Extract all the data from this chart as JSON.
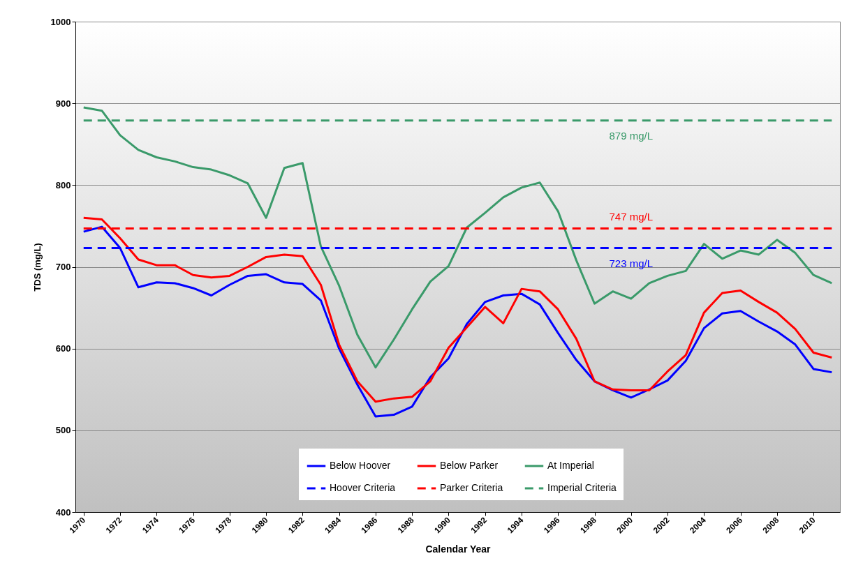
{
  "chart_data": {
    "type": "line",
    "xlabel": "Calendar Year",
    "ylabel": "TDS (mg/L)",
    "categories": [
      "1970",
      null,
      "1972",
      null,
      "1974",
      null,
      "1976",
      null,
      "1978",
      null,
      "1980",
      null,
      "1982",
      null,
      "1984",
      null,
      "1986",
      null,
      "1988",
      null,
      "1990",
      null,
      "1992",
      null,
      "1994",
      null,
      "1996",
      null,
      "1998",
      null,
      "2000",
      null,
      "2002",
      null,
      "2004",
      null,
      "2006",
      null,
      "2008",
      null,
      "2010",
      null
    ],
    "ylim": [
      400,
      1000
    ],
    "yticks": [
      400,
      500,
      600,
      700,
      800,
      900,
      1000
    ],
    "grid": "y",
    "legend": "bottom",
    "marker": "none",
    "series": [
      {
        "name": "Below Hoover",
        "color": "#0000ff",
        "line_style": "solid",
        "values": [
          743,
          749,
          723,
          675,
          681,
          680,
          674,
          665,
          678,
          689,
          691,
          681,
          679,
          659,
          600,
          556,
          517,
          519,
          529,
          565,
          588,
          630,
          657,
          665,
          667,
          654,
          619,
          586,
          560,
          549,
          540,
          550,
          561,
          585,
          625,
          643,
          646,
          633,
          621,
          605,
          575,
          571
        ]
      },
      {
        "name": "Below Parker",
        "color": "#ff0000",
        "line_style": "solid",
        "values": [
          760,
          758,
          735,
          709,
          702,
          702,
          690,
          687,
          689,
          700,
          712,
          715,
          713,
          678,
          605,
          560,
          535,
          539,
          541,
          560,
          601,
          626,
          651,
          631,
          673,
          670,
          648,
          612,
          560,
          550,
          549,
          549,
          572,
          592,
          644,
          668,
          671,
          657,
          644,
          624,
          595,
          589
        ]
      },
      {
        "name": "At Imperial",
        "color": "#3a9a6a",
        "line_style": "solid",
        "values": [
          895,
          891,
          861,
          843,
          834,
          829,
          822,
          819,
          812,
          802,
          760,
          821,
          827,
          725,
          677,
          617,
          577,
          611,
          648,
          682,
          701,
          748,
          766,
          785,
          797,
          803,
          768,
          708,
          655,
          670,
          661,
          680,
          689,
          695,
          728,
          710,
          720,
          715,
          733,
          717,
          690,
          680
        ]
      },
      {
        "name": "Hoover Criteria",
        "color": "#0000ff",
        "line_style": "dashed",
        "values": [
          723,
          723,
          723,
          723,
          723,
          723,
          723,
          723,
          723,
          723,
          723,
          723,
          723,
          723,
          723,
          723,
          723,
          723,
          723,
          723,
          723,
          723,
          723,
          723,
          723,
          723,
          723,
          723,
          723,
          723,
          723,
          723,
          723,
          723,
          723,
          723,
          723,
          723,
          723,
          723,
          723,
          723
        ],
        "value_labels": [
          null,
          null,
          null,
          null,
          null,
          null,
          null,
          null,
          null,
          null,
          null,
          null,
          null,
          null,
          null,
          null,
          null,
          null,
          null,
          null,
          null,
          null,
          null,
          null,
          null,
          null,
          null,
          null,
          null,
          null,
          "723 mg/L",
          null,
          null,
          null,
          null,
          null,
          null,
          null,
          null,
          null,
          null,
          null
        ]
      },
      {
        "name": "Parker Criteria",
        "color": "#ff0000",
        "line_style": "dashed",
        "values": [
          747,
          747,
          747,
          747,
          747,
          747,
          747,
          747,
          747,
          747,
          747,
          747,
          747,
          747,
          747,
          747,
          747,
          747,
          747,
          747,
          747,
          747,
          747,
          747,
          747,
          747,
          747,
          747,
          747,
          747,
          747,
          747,
          747,
          747,
          747,
          747,
          747,
          747,
          747,
          747,
          747,
          747
        ],
        "value_labels": [
          null,
          null,
          null,
          null,
          null,
          null,
          null,
          null,
          null,
          null,
          null,
          null,
          null,
          null,
          null,
          null,
          null,
          null,
          null,
          null,
          null,
          null,
          null,
          null,
          null,
          null,
          null,
          null,
          null,
          null,
          "747 mg/L",
          null,
          null,
          null,
          null,
          null,
          null,
          null,
          null,
          null,
          null,
          null
        ]
      },
      {
        "name": "Imperial Criteria",
        "color": "#3a9a6a",
        "line_style": "dashed",
        "values": [
          879,
          879,
          879,
          879,
          879,
          879,
          879,
          879,
          879,
          879,
          879,
          879,
          879,
          879,
          879,
          879,
          879,
          879,
          879,
          879,
          879,
          879,
          879,
          879,
          879,
          879,
          879,
          879,
          879,
          879,
          879,
          879,
          879,
          879,
          879,
          879,
          879,
          879,
          879,
          879,
          879,
          879
        ],
        "value_labels": [
          null,
          null,
          null,
          null,
          null,
          null,
          null,
          null,
          null,
          null,
          null,
          null,
          null,
          null,
          null,
          null,
          null,
          null,
          null,
          null,
          null,
          null,
          null,
          null,
          null,
          null,
          null,
          null,
          null,
          null,
          "879 mg/L",
          null,
          null,
          null,
          null,
          null,
          null,
          null,
          null,
          null,
          null,
          null
        ]
      }
    ]
  }
}
